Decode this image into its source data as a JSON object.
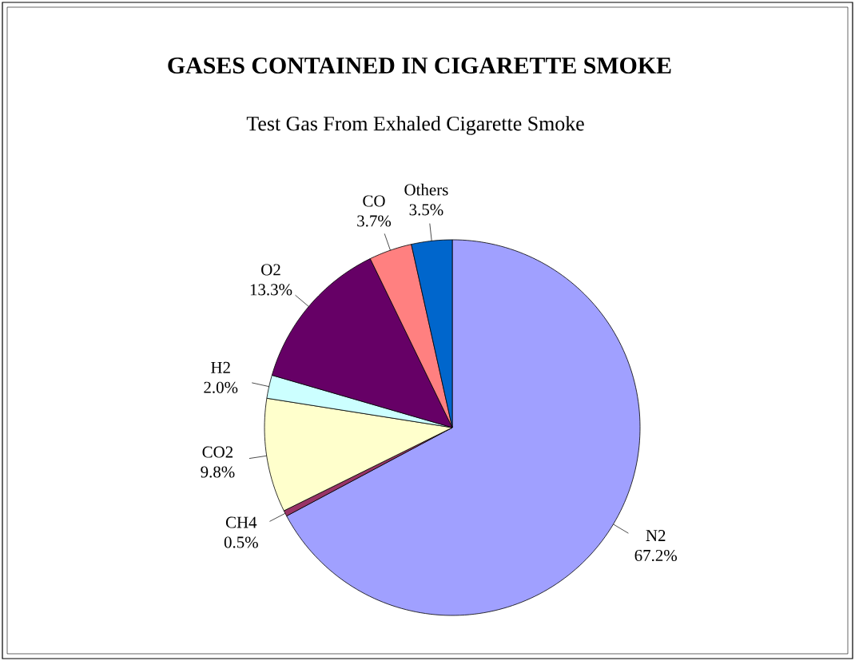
{
  "chart_data": {
    "type": "pie",
    "title": "GASES CONTAINED IN CIGARETTE SMOKE",
    "subtitle": "Test Gas From Exhaled Cigarette Smoke",
    "categories": [
      "N2",
      "CH4",
      "CO2",
      "H2",
      "O2",
      "CO",
      "Others"
    ],
    "values": [
      67.2,
      0.5,
      9.8,
      2.0,
      13.3,
      3.7,
      3.5
    ],
    "value_labels": [
      "67.2%",
      "0.5%",
      "9.8%",
      "2.0%",
      "13.3%",
      "3.7%",
      "3.5%"
    ],
    "colors": [
      "#a0a0ff",
      "#993366",
      "#ffffcc",
      "#ccffff",
      "#660066",
      "#ff8080",
      "#0066cc"
    ]
  }
}
